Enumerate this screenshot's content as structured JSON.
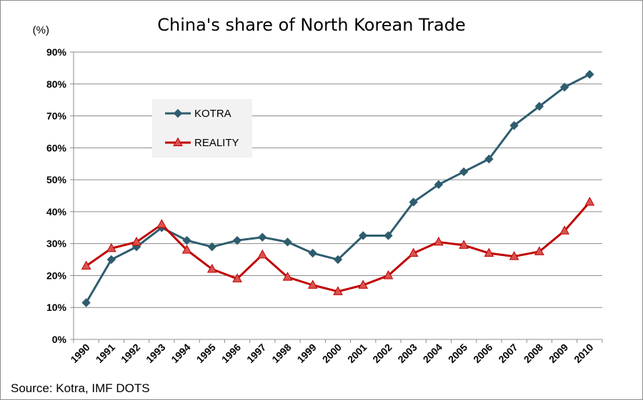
{
  "chart_data": {
    "type": "line",
    "title": "China's share of North Korean Trade",
    "unit_label": "(%)",
    "xlabel": "",
    "ylabel": "",
    "ylim": [
      0,
      90
    ],
    "y_ticks": [
      "0%",
      "10%",
      "20%",
      "30%",
      "40%",
      "50%",
      "60%",
      "70%",
      "80%",
      "90%"
    ],
    "y_tick_values": [
      0,
      10,
      20,
      30,
      40,
      50,
      60,
      70,
      80,
      90
    ],
    "grid": true,
    "legend_position": "top-left",
    "categories": [
      "1990",
      "1991",
      "1992",
      "1993",
      "1994",
      "1995",
      "1996",
      "1997",
      "1998",
      "1999",
      "2000",
      "2001",
      "2002",
      "2003",
      "2004",
      "2005",
      "2006",
      "2007",
      "2008",
      "2009",
      "2010"
    ],
    "series": [
      {
        "name": "KOTRA",
        "color": "#2e5d6e",
        "marker": "diamond",
        "values": [
          11.5,
          25,
          29,
          35,
          31,
          29,
          31,
          32,
          30.5,
          27,
          25,
          32.5,
          32.5,
          43,
          48.5,
          52.5,
          56.5,
          67,
          73,
          79,
          83
        ]
      },
      {
        "name": "REALITY",
        "color": "#c00000",
        "marker": "triangle",
        "marker_fill": "#d9534f",
        "values": [
          23,
          28.5,
          30.5,
          36,
          28,
          22,
          19,
          26.5,
          19.5,
          17,
          15,
          17,
          20,
          27,
          30.5,
          29.5,
          27,
          26,
          27.5,
          34,
          43
        ]
      }
    ]
  },
  "source_text": "Source: Kotra, IMF DOTS"
}
